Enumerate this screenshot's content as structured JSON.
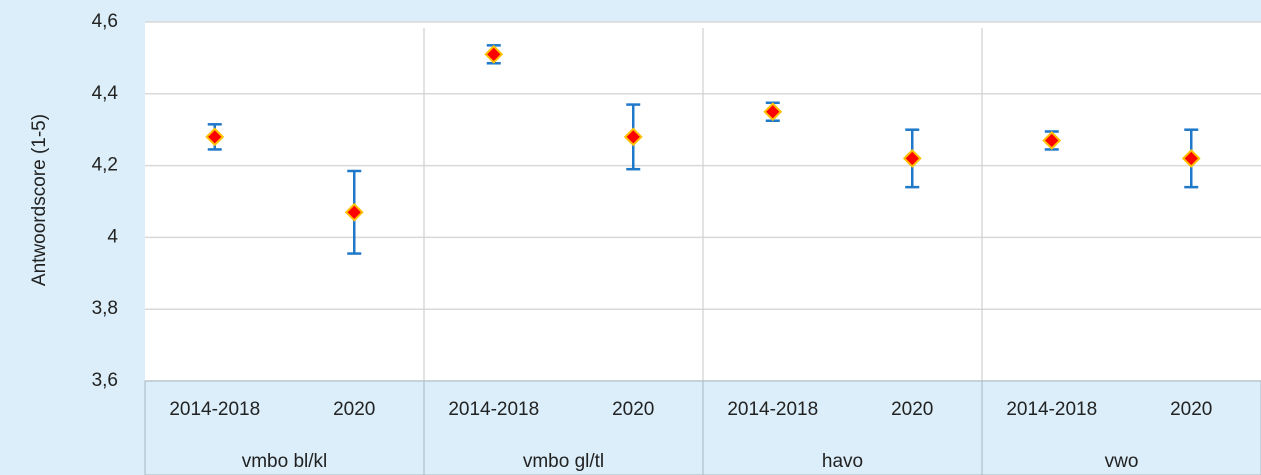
{
  "chart_data": {
    "type": "scatter",
    "y_label": "Antwoordscore (1-5)",
    "categories": [
      "2014-2018",
      "2020",
      "2014-2018",
      "2020",
      "2014-2018",
      "2020",
      "2014-2018",
      "2020"
    ],
    "groups": [
      "vmbo bl/kl",
      "vmbo gl/tl",
      "havo",
      "vwo"
    ],
    "values": [
      4.28,
      4.07,
      4.51,
      4.28,
      4.35,
      4.22,
      4.27,
      4.22
    ],
    "errors": [
      0.035,
      0.115,
      0.025,
      0.09,
      0.025,
      0.08,
      0.025,
      0.08
    ],
    "color": "#ff0000",
    "error_color": "#1f78c8",
    "ylim": [
      3.6,
      4.6
    ],
    "yticks": [
      {
        "value": 3.6,
        "label": "3,6"
      },
      {
        "value": 3.8,
        "label": "3,8"
      },
      4,
      {
        "value": 4.2,
        "label": "4,2"
      },
      {
        "value": 4.4,
        "label": "4,4"
      },
      {
        "value": 4.6,
        "label": "4,6"
      }
    ],
    "grid": true
  }
}
